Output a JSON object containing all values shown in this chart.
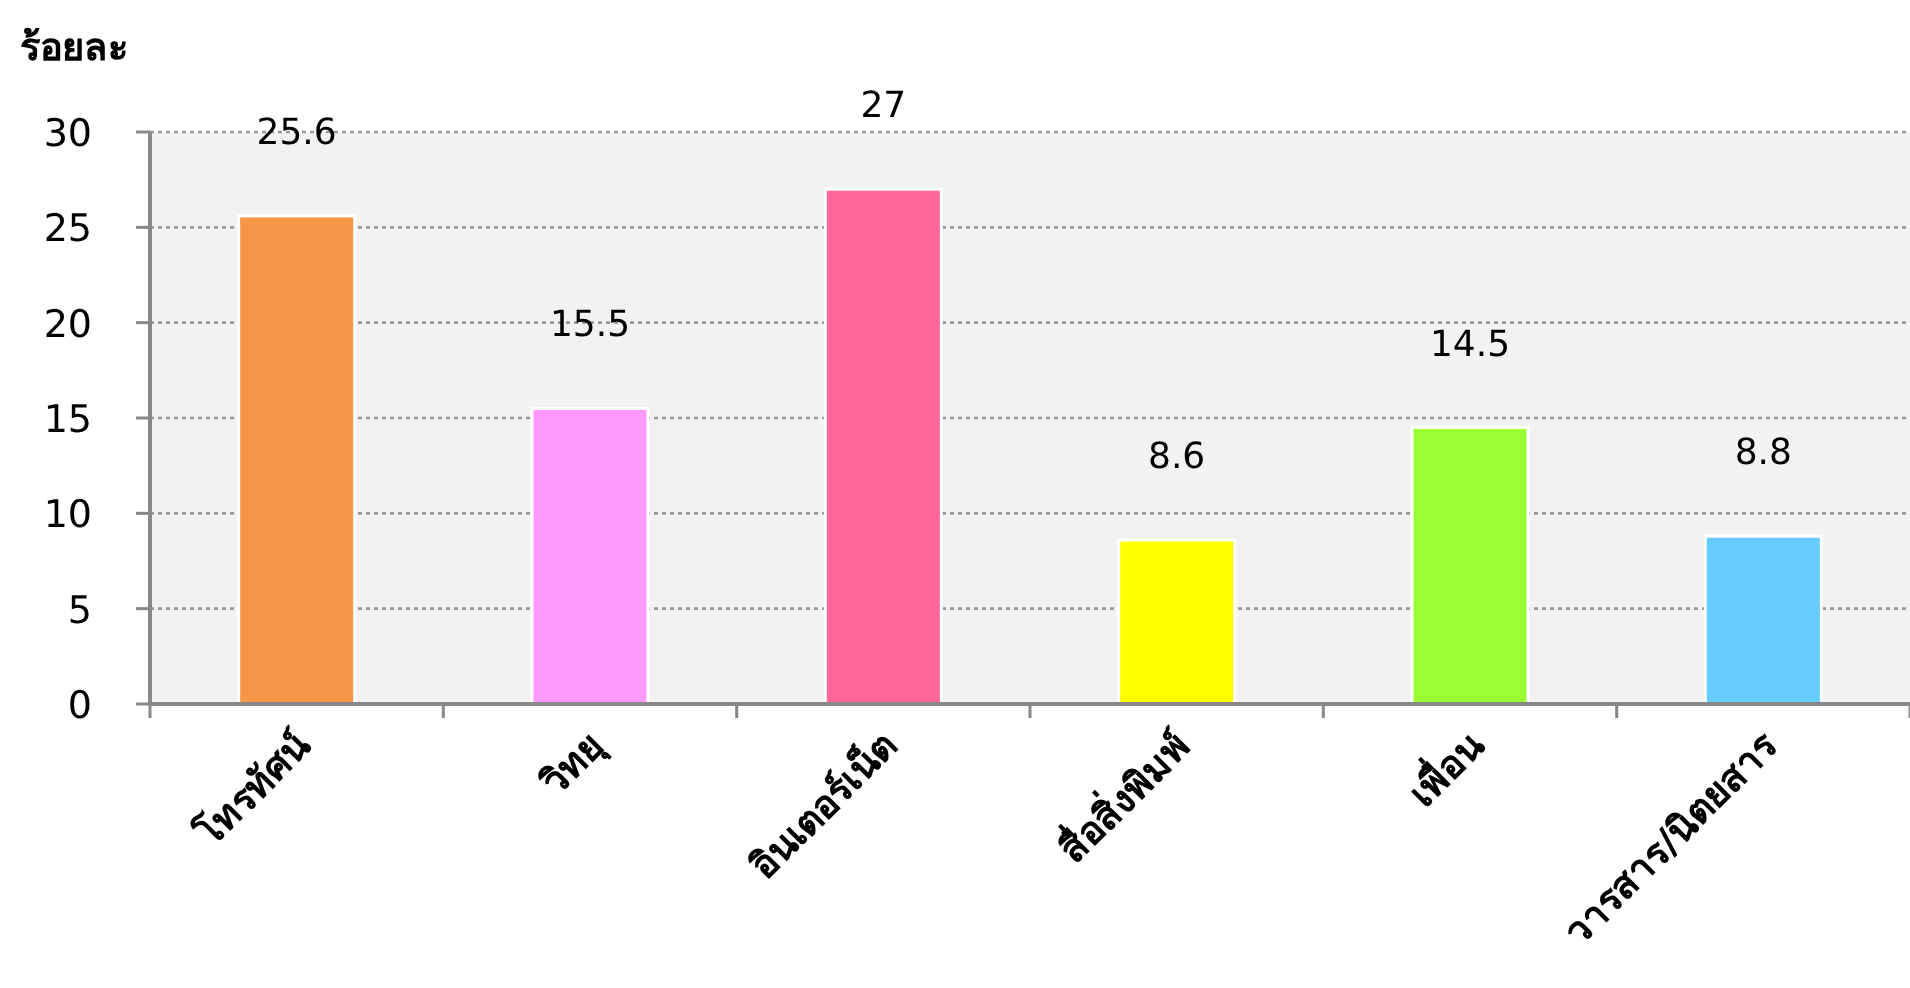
{
  "chart_data": {
    "type": "bar",
    "ylabel": "ร้อยละ",
    "categories": [
      "โทรทัศน์",
      "วิทยุ",
      "อินเตอร์เน็ต",
      "สื่อสิ่งพิมพ์",
      "เพื่อน",
      "วารสาร/นิตยสาร"
    ],
    "values": [
      25.6,
      15.5,
      27,
      8.6,
      14.5,
      8.8
    ],
    "colors": [
      "#f79646",
      "#ff99ff",
      "#ff6699",
      "#ffff00",
      "#99ff33",
      "#66ccff"
    ],
    "ylim": [
      0,
      30
    ],
    "yticks": [
      0,
      5,
      10,
      15,
      20,
      25,
      30
    ],
    "grid": "y",
    "data_labels": true
  }
}
